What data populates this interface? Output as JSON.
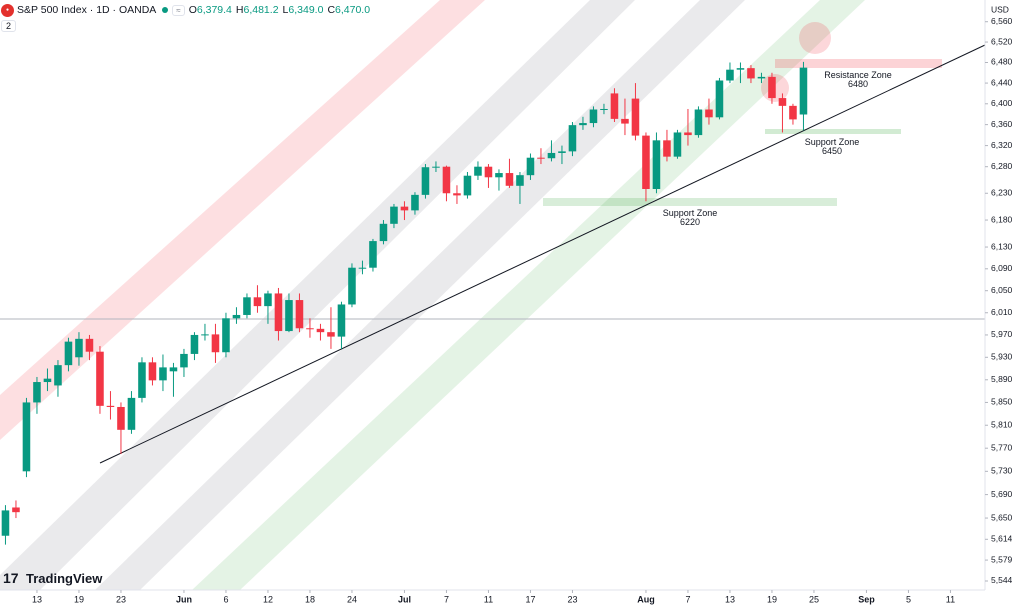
{
  "header": {
    "title": "S&P 500 Index · 1D · OANDA",
    "badge": "2",
    "currency": "USD",
    "ohlc": [
      {
        "key": "O",
        "value": "6,379.4"
      },
      {
        "key": "H",
        "value": "6,481.2"
      },
      {
        "key": "L",
        "value": "6,349.0"
      },
      {
        "key": "C",
        "value": "6,470.0"
      }
    ],
    "brand": "TradingView"
  },
  "chart_data": {
    "type": "candlestick",
    "log_scale": true,
    "grid": false,
    "up_color": "#089981",
    "down_color": "#f23645",
    "open": [
      5620,
      5668,
      5730,
      5850,
      5886,
      5880,
      5916,
      5930,
      5963,
      5940,
      5844,
      5842,
      5802,
      5858,
      5921,
      5889,
      5905,
      5912,
      5936,
      5970,
      5971,
      5939,
      6000,
      6006,
      6038,
      6022,
      6045,
      5977,
      6033,
      5982,
      5981,
      5975,
      5967,
      6025,
      6092,
      6092,
      6141,
      6173,
      6205,
      6198,
      6227,
      6279,
      6280,
      6230,
      6226,
      6263,
      6280,
      6260,
      6268,
      6244,
      6264,
      6297,
      6296,
      6306,
      6309,
      6359,
      6363,
      6389,
      6420,
      6371,
      6410,
      6339,
      6238,
      6330,
      6299,
      6345,
      6340,
      6389,
      6374,
      6445,
      6466,
      6469,
      6449,
      6452,
      6411,
      6396,
      6379.4
    ],
    "high": [
      5672,
      5680,
      5858,
      5895,
      5910,
      5925,
      5965,
      5975,
      5970,
      5950,
      5870,
      5850,
      5870,
      5930,
      5930,
      5935,
      5920,
      5945,
      5975,
      5990,
      5990,
      6010,
      6020,
      6045,
      6060,
      6050,
      6055,
      6045,
      6045,
      6000,
      5990,
      6020,
      6030,
      6100,
      6105,
      6145,
      6180,
      6210,
      6215,
      6232,
      6285,
      6290,
      6282,
      6245,
      6270,
      6290,
      6285,
      6275,
      6295,
      6270,
      6305,
      6315,
      6330,
      6320,
      6365,
      6375,
      6395,
      6400,
      6430,
      6410,
      6440,
      6345,
      6345,
      6350,
      6350,
      6390,
      6395,
      6410,
      6450,
      6480,
      6480,
      6475,
      6460,
      6460,
      6420,
      6400,
      6481.2
    ],
    "low": [
      5605,
      5650,
      5720,
      5830,
      5870,
      5860,
      5905,
      5915,
      5925,
      5830,
      5820,
      5760,
      5795,
      5850,
      5880,
      5870,
      5860,
      5895,
      5925,
      5960,
      5920,
      5930,
      5990,
      6000,
      6010,
      5990,
      5960,
      5975,
      5975,
      5965,
      5960,
      5945,
      5945,
      6020,
      6080,
      6085,
      6135,
      6165,
      6180,
      6190,
      6220,
      6270,
      6215,
      6210,
      6220,
      6255,
      6240,
      6235,
      6240,
      6210,
      6255,
      6285,
      6290,
      6285,
      6300,
      6350,
      6355,
      6380,
      6365,
      6340,
      6330,
      6215,
      6230,
      6290,
      6295,
      6320,
      6335,
      6360,
      6370,
      6440,
      6440,
      6440,
      6440,
      6400,
      6345,
      6360,
      6349
    ],
    "close": [
      5663,
      5660,
      5850,
      5886,
      5892,
      5916,
      5958,
      5963,
      5940,
      5844,
      5842,
      5802,
      5858,
      5921,
      5889,
      5912,
      5912,
      5936,
      5970,
      5971,
      5939,
      6000,
      6006,
      6038,
      6022,
      6045,
      5977,
      6033,
      5982,
      5981,
      5975,
      5967,
      6025,
      6092,
      6092,
      6141,
      6173,
      6205,
      6198,
      6227,
      6279,
      6280,
      6230,
      6226,
      6263,
      6280,
      6260,
      6268,
      6244,
      6264,
      6297,
      6296,
      6306,
      6309,
      6359,
      6363,
      6389,
      6390,
      6371,
      6362,
      6339,
      6238,
      6330,
      6299,
      6345,
      6340,
      6389,
      6374,
      6445,
      6466,
      6469,
      6449,
      6452,
      6411,
      6396,
      6370,
      6470
    ],
    "xlim": [
      -0.52,
      93.29
    ],
    "xticks": [
      {
        "value": 3,
        "label": "13"
      },
      {
        "value": 7,
        "label": "19"
      },
      {
        "value": 11,
        "label": "23"
      },
      {
        "value": 17,
        "label": "Jun"
      },
      {
        "value": 21,
        "label": "6"
      },
      {
        "value": 25,
        "label": "12"
      },
      {
        "value": 29,
        "label": "18"
      },
      {
        "value": 33,
        "label": "24"
      },
      {
        "value": 38,
        "label": "Jul"
      },
      {
        "value": 42,
        "label": "7"
      },
      {
        "value": 46,
        "label": "11"
      },
      {
        "value": 50,
        "label": "17"
      },
      {
        "value": 54,
        "label": "23"
      },
      {
        "value": 61,
        "label": "Aug"
      },
      {
        "value": 65,
        "label": "7"
      },
      {
        "value": 69,
        "label": "13"
      },
      {
        "value": 73,
        "label": "19"
      },
      {
        "value": 77,
        "label": "25"
      },
      {
        "value": 82,
        "label": "Sep"
      },
      {
        "value": 86,
        "label": "5"
      },
      {
        "value": 90,
        "label": "11"
      }
    ],
    "ylim": [
      5529,
      6603
    ],
    "yticks": [
      {
        "value": 6560,
        "label": "6,560"
      },
      {
        "value": 6520,
        "label": "6,520"
      },
      {
        "value": 6480,
        "label": "6,480"
      },
      {
        "value": 6440,
        "label": "6,440"
      },
      {
        "value": 6400,
        "label": "6,400"
      },
      {
        "value": 6360,
        "label": "6,360"
      },
      {
        "value": 6320,
        "label": "6,320"
      },
      {
        "value": 6280,
        "label": "6,280"
      },
      {
        "value": 6230,
        "label": "6,230"
      },
      {
        "value": 6180,
        "label": "6,180"
      },
      {
        "value": 6130,
        "label": "6,130"
      },
      {
        "value": 6090,
        "label": "6,090"
      },
      {
        "value": 6050,
        "label": "6,050"
      },
      {
        "value": 6010,
        "label": "6,010"
      },
      {
        "value": 5970,
        "label": "5,970"
      },
      {
        "value": 5930,
        "label": "5,930"
      },
      {
        "value": 5890,
        "label": "5,890"
      },
      {
        "value": 5850,
        "label": "5,850"
      },
      {
        "value": 5810,
        "label": "5,810"
      },
      {
        "value": 5770,
        "label": "5,770"
      },
      {
        "value": 5730,
        "label": "5,730"
      },
      {
        "value": 5690,
        "label": "5,690"
      },
      {
        "value": 5650,
        "label": "5,650"
      },
      {
        "value": 5614,
        "label": "5,614"
      },
      {
        "value": 5579,
        "label": "5,579"
      },
      {
        "value": 5544,
        "label": "5,544"
      }
    ],
    "annotations": [
      {
        "text": "Resistance Zone",
        "level": 6480
      },
      {
        "text": "Support Zone",
        "level": 6450
      },
      {
        "text": "Support Zone",
        "level": 6220
      }
    ]
  }
}
